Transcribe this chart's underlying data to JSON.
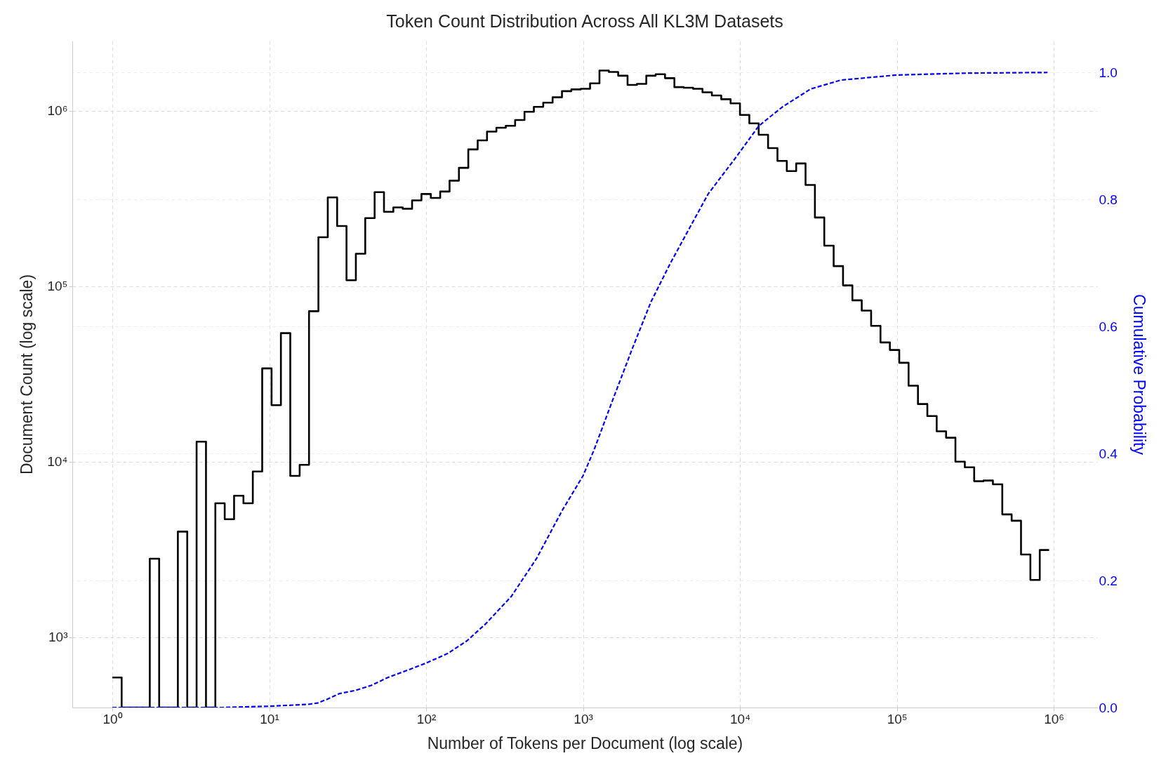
{
  "chart_data": {
    "type": "histogram",
    "title": "Token Count Distribution Across All KL3M Datasets",
    "xlabel": "Number of Tokens per Document (log scale)",
    "ylabel": "Document Count (log scale)",
    "y2label": "Cumulative Probability",
    "log": "xy",
    "grid": true,
    "xlim": [
      0.556,
      1890000
    ],
    "xticks": [
      {
        "value": 1,
        "label": "10⁰"
      },
      {
        "value": 10,
        "label": "10¹"
      },
      {
        "value": 100,
        "label": "10²"
      },
      {
        "value": 1000,
        "label": "10³"
      },
      {
        "value": 10000,
        "label": "10⁴"
      },
      {
        "value": 100000,
        "label": "10⁵"
      },
      {
        "value": 1000000,
        "label": "10⁶"
      }
    ],
    "ylim": [
      398,
      2500000
    ],
    "yticks": [
      {
        "value": 1000,
        "label": "10³"
      },
      {
        "value": 10000,
        "label": "10⁴"
      },
      {
        "value": 100000,
        "label": "10⁵"
      },
      {
        "value": 1000000,
        "label": "10⁶"
      }
    ],
    "y2lim": [
      0,
      1.05
    ],
    "y2ticks": [
      {
        "value": 0,
        "label": "0.0"
      },
      {
        "value": 0.2,
        "label": "0.2"
      },
      {
        "value": 0.4,
        "label": "0.4"
      },
      {
        "value": 0.6,
        "label": "0.6"
      },
      {
        "value": 0.8,
        "label": "0.8"
      },
      {
        "value": 1,
        "label": "1.0"
      }
    ],
    "series": [
      {
        "type": "histogram",
        "color": "#000000",
        "bins": [
          1,
          1.147,
          1.316,
          1.511,
          1.733,
          1.989,
          2.282,
          2.617,
          3.003,
          3.445,
          3.954,
          4.536,
          5.204,
          5.971,
          6.851,
          7.86,
          9.02,
          10.35,
          11.87,
          13.62,
          15.63,
          17.93,
          20.58,
          23.61,
          27.09,
          31.08,
          35.66,
          40.92,
          46.95,
          53.87,
          61.8,
          70.91,
          81.36,
          93.35,
          107.1,
          122.9,
          141,
          161.8,
          185.6,
          213,
          244.3,
          280.3,
          321.6,
          369,
          423.4,
          485.8,
          557.4,
          639.6,
          733.8,
          842,
          966.1,
          1108,
          1272,
          1459,
          1674,
          1921,
          2204,
          2529,
          2901,
          3329,
          3819,
          4382,
          5028,
          5769,
          6619,
          7595,
          8714,
          9998,
          11470,
          13160,
          15100,
          17330,
          19880,
          22810,
          26170,
          30030,
          34450,
          39530,
          45360,
          52040,
          59700,
          68500,
          78600,
          90200,
          103500,
          118700,
          136200,
          156300,
          179300,
          205800,
          236000,
          270900,
          310800,
          356600,
          409100,
          469400,
          538600,
          618000,
          709000,
          813600,
          933300
        ],
        "values": [
          590,
          null,
          null,
          null,
          2800,
          null,
          null,
          4000,
          null,
          13000,
          null,
          5800,
          4700,
          6400,
          5800,
          8800,
          34000,
          21000,
          54000,
          8300,
          9600,
          72000,
          190000,
          320000,
          220000,
          108000,
          153000,
          244000,
          343000,
          265000,
          281000,
          276000,
          308000,
          335000,
          318000,
          346000,
          399000,
          472000,
          601000,
          676000,
          759000,
          798000,
          819000,
          883000,
          985000,
          1050000,
          1110000,
          1190000,
          1290000,
          1320000,
          1330000,
          1430000,
          1690000,
          1660000,
          1580000,
          1400000,
          1420000,
          1580000,
          1610000,
          1530000,
          1360000,
          1350000,
          1330000,
          1270000,
          1220000,
          1160000,
          1100000,
          944000,
          846000,
          728000,
          611000,
          517000,
          452000,
          500000,
          377000,
          246000,
          170000,
          130000,
          101000,
          83000,
          72600,
          59400,
          47800,
          43300,
          36600,
          27100,
          21300,
          18200,
          14900,
          13700,
          10000,
          9300,
          7740,
          7810,
          7430,
          5010,
          4610,
          2960,
          2120,
          3140
        ]
      },
      {
        "type": "line",
        "axis": "y2",
        "color": "#0000ff",
        "line_style": "dashed",
        "x": [
          1,
          5,
          10,
          14.7,
          17.7,
          20.3,
          23.4,
          28.1,
          35.5,
          44.9,
          56.6,
          78.5,
          100,
          137,
          182,
          240,
          349,
          506,
          735,
          1000,
          1172,
          1549,
          2051,
          2711,
          3589,
          4745,
          6281,
          9400,
          13200,
          18700,
          28200,
          44000,
          100000,
          288000,
          912000
        ],
        "values": [
          0,
          0,
          0.002,
          0.004,
          0.005,
          0.007,
          0.013,
          0.022,
          0.027,
          0.035,
          0.047,
          0.06,
          0.07,
          0.085,
          0.105,
          0.132,
          0.175,
          0.235,
          0.31,
          0.365,
          0.405,
          0.485,
          0.564,
          0.639,
          0.699,
          0.754,
          0.809,
          0.866,
          0.916,
          0.946,
          0.974,
          0.988,
          0.996,
          0.999,
          1.0
        ]
      }
    ]
  }
}
